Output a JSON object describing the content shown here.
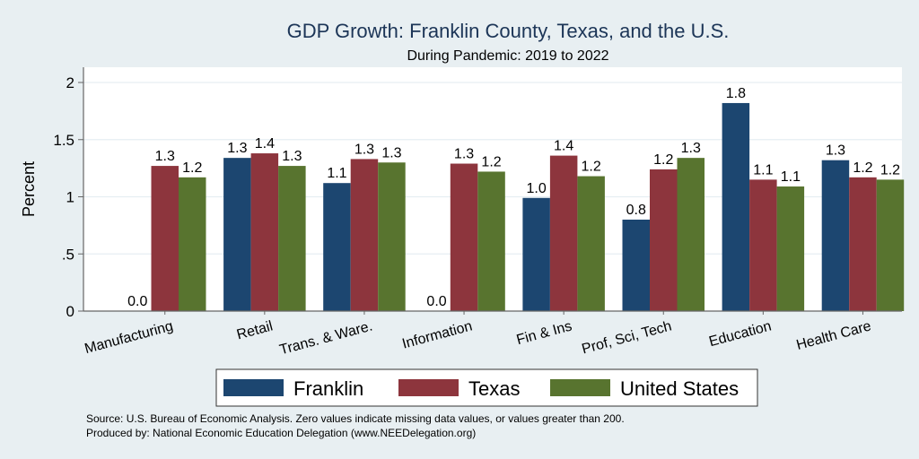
{
  "chart_data": {
    "type": "bar",
    "title": "GDP Growth: Franklin County, Texas, and the U.S.",
    "subtitle": "During Pandemic: 2019 to 2022",
    "xlabel": "",
    "ylabel": "Percent",
    "ylim": [
      0,
      2.1
    ],
    "yticks": [
      0,
      0.5,
      1,
      1.5,
      2
    ],
    "ytick_labels": [
      "0",
      ".5",
      "1",
      "1.5",
      "2"
    ],
    "grid": true,
    "legend_position": "bottom",
    "categories": [
      "Manufacturing",
      "Retail",
      "Trans. & Ware.",
      "Information",
      "Fin & Ins",
      "Prof, Sci, Tech",
      "Education",
      "Health Care"
    ],
    "series": [
      {
        "name": "Franklin",
        "color": "#1c4670",
        "values": [
          0.0,
          1.34,
          1.12,
          0.0,
          0.99,
          0.8,
          1.82,
          1.32
        ],
        "labels": [
          "0.0",
          "1.3",
          "1.1",
          "0.0",
          "1.0",
          "0.8",
          "1.8",
          "1.3"
        ]
      },
      {
        "name": "Texas",
        "color": "#8d353d",
        "values": [
          1.27,
          1.38,
          1.33,
          1.29,
          1.36,
          1.24,
          1.15,
          1.17
        ],
        "labels": [
          "1.3",
          "1.4",
          "1.3",
          "1.3",
          "1.4",
          "1.2",
          "1.1",
          "1.2"
        ]
      },
      {
        "name": "United States",
        "color": "#58742f",
        "values": [
          1.17,
          1.27,
          1.3,
          1.22,
          1.18,
          1.34,
          1.09,
          1.15
        ],
        "labels": [
          "1.2",
          "1.3",
          "1.3",
          "1.2",
          "1.2",
          "1.3",
          "1.1",
          "1.2"
        ]
      }
    ],
    "notes": [
      "Source: U.S. Bureau of Economic Analysis. Zero values indicate missing data values, or values greater than 200.",
      "Produced by: National Economic Education Delegation (www.NEEDelegation.org)"
    ]
  }
}
